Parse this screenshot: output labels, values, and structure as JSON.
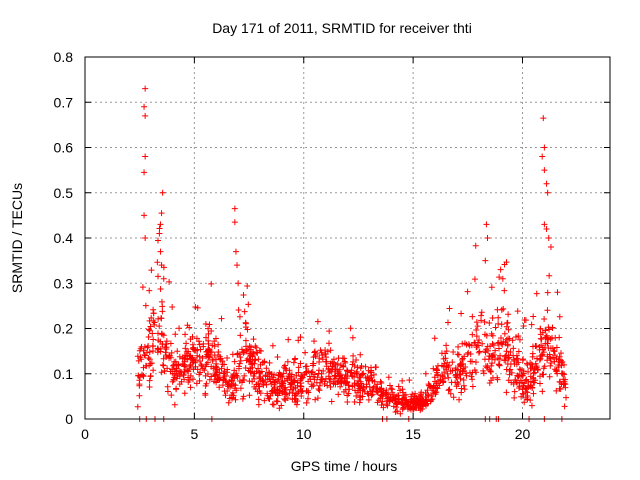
{
  "chart_data": {
    "type": "scatter",
    "title": "Day 171 of 2011, SRMTID for receiver thti",
    "xlabel": "GPS time / hours",
    "ylabel": "SRMTID / TECUs",
    "xlim": [
      0,
      24
    ],
    "ylim": [
      0,
      0.8
    ],
    "xticks": [
      0,
      5,
      10,
      15,
      20
    ],
    "xtick_labels": [
      "0",
      "5",
      "10",
      "15",
      "20"
    ],
    "yticks": [
      0,
      0.1,
      0.2,
      0.3,
      0.4,
      0.5,
      0.6,
      0.7,
      0.8
    ],
    "ytick_labels": [
      "0",
      "0.1",
      "0.2",
      "0.3",
      "0.4",
      "0.5",
      "0.6",
      "0.7",
      "0.8"
    ],
    "grid": true,
    "marker": "+",
    "color": "#ff0000",
    "series": [
      {
        "name": "SRMTID",
        "data_range": [
          2.4,
          22.0
        ],
        "profile": [
          [
            2.4,
            0.1
          ],
          [
            2.7,
            0.16
          ],
          [
            3.0,
            0.14
          ],
          [
            3.3,
            0.2
          ],
          [
            3.6,
            0.16
          ],
          [
            3.9,
            0.12
          ],
          [
            4.3,
            0.1
          ],
          [
            4.8,
            0.12
          ],
          [
            5.3,
            0.15
          ],
          [
            5.8,
            0.14
          ],
          [
            6.3,
            0.1
          ],
          [
            6.7,
            0.07
          ],
          [
            7.0,
            0.11
          ],
          [
            7.5,
            0.13
          ],
          [
            8.0,
            0.1
          ],
          [
            8.5,
            0.07
          ],
          [
            9.0,
            0.07
          ],
          [
            9.5,
            0.08
          ],
          [
            10.0,
            0.08
          ],
          [
            10.5,
            0.1
          ],
          [
            11.0,
            0.11
          ],
          [
            11.5,
            0.1
          ],
          [
            12.0,
            0.09
          ],
          [
            12.5,
            0.09
          ],
          [
            13.0,
            0.08
          ],
          [
            13.5,
            0.05
          ],
          [
            14.0,
            0.05
          ],
          [
            14.5,
            0.04
          ],
          [
            15.0,
            0.035
          ],
          [
            15.5,
            0.035
          ],
          [
            16.0,
            0.08
          ],
          [
            16.5,
            0.11
          ],
          [
            17.0,
            0.09
          ],
          [
            17.5,
            0.12
          ],
          [
            18.0,
            0.18
          ],
          [
            18.5,
            0.12
          ],
          [
            19.0,
            0.18
          ],
          [
            19.5,
            0.12
          ],
          [
            20.0,
            0.09
          ],
          [
            20.5,
            0.1
          ],
          [
            21.0,
            0.17
          ],
          [
            21.5,
            0.12
          ],
          [
            22.0,
            0.08
          ]
        ],
        "peaks": [
          [
            2.75,
            0.73
          ],
          [
            2.7,
            0.69
          ],
          [
            2.75,
            0.67
          ],
          [
            2.75,
            0.58
          ],
          [
            2.7,
            0.545
          ],
          [
            2.7,
            0.45
          ],
          [
            2.75,
            0.4
          ],
          [
            3.55,
            0.5
          ],
          [
            3.5,
            0.455
          ],
          [
            3.45,
            0.43
          ],
          [
            3.4,
            0.41
          ],
          [
            3.45,
            0.37
          ],
          [
            3.5,
            0.34
          ],
          [
            3.6,
            0.31
          ],
          [
            6.85,
            0.465
          ],
          [
            6.85,
            0.435
          ],
          [
            6.9,
            0.37
          ],
          [
            6.95,
            0.34
          ],
          [
            7.0,
            0.3
          ],
          [
            18.35,
            0.43
          ],
          [
            18.4,
            0.4
          ],
          [
            18.3,
            0.35
          ],
          [
            19.0,
            0.33
          ],
          [
            19.1,
            0.31
          ],
          [
            20.95,
            0.665
          ],
          [
            21.0,
            0.6
          ],
          [
            20.9,
            0.58
          ],
          [
            21.0,
            0.55
          ],
          [
            21.1,
            0.52
          ],
          [
            21.15,
            0.5
          ],
          [
            21.0,
            0.43
          ],
          [
            21.1,
            0.42
          ],
          [
            21.2,
            0.4
          ],
          [
            21.3,
            0.38
          ],
          [
            21.6,
            0.28
          ]
        ],
        "zeros": [
          [
            2.5,
            0
          ],
          [
            2.8,
            0
          ],
          [
            3.2,
            0
          ],
          [
            3.6,
            0
          ],
          [
            5.8,
            0
          ],
          [
            13.6,
            0
          ],
          [
            13.8,
            0
          ],
          [
            14.8,
            0
          ],
          [
            18.3,
            0
          ],
          [
            18.5,
            0
          ],
          [
            18.8,
            0
          ],
          [
            18.9,
            0
          ],
          [
            20.3,
            0
          ],
          [
            21.0,
            0
          ],
          [
            21.8,
            0
          ]
        ]
      }
    ]
  }
}
